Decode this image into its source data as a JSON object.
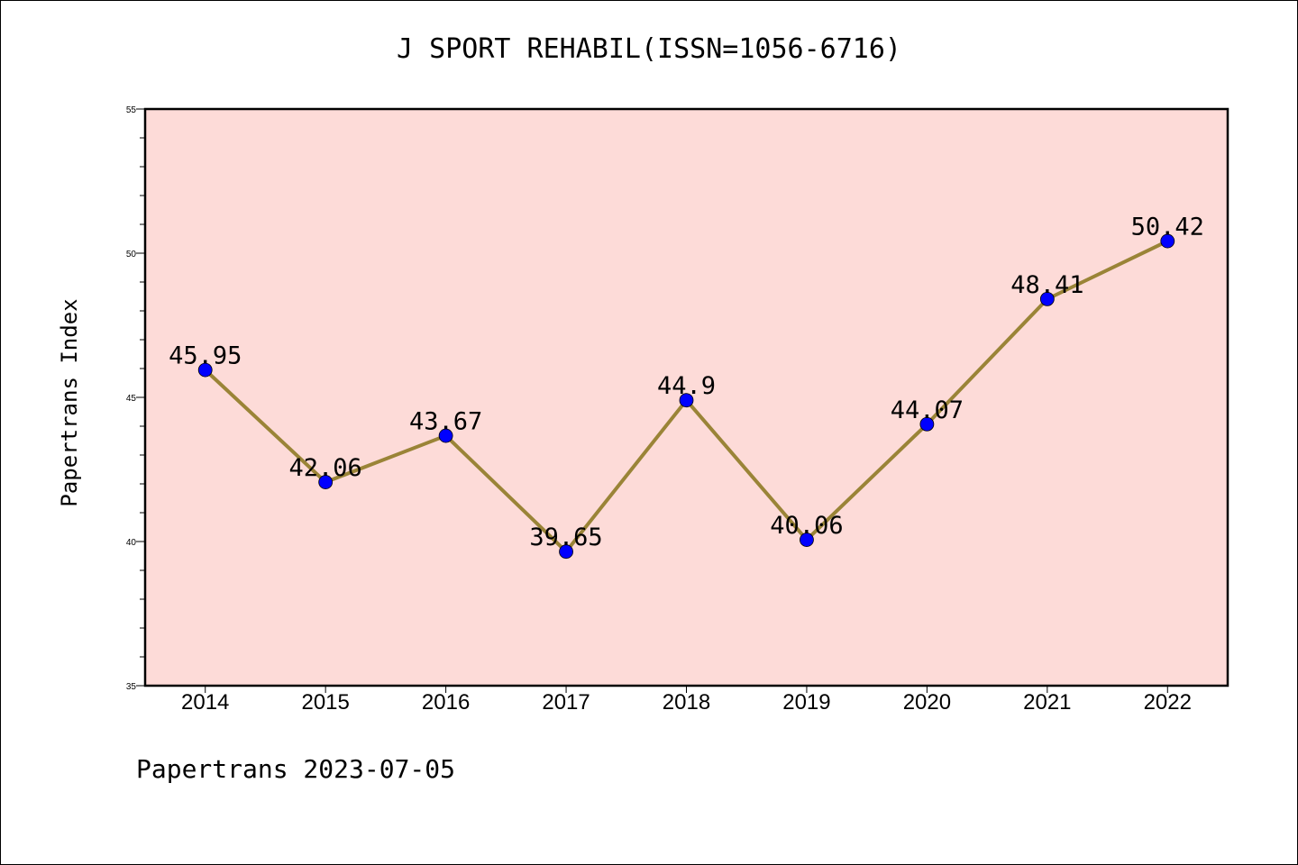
{
  "title": "J SPORT REHABIL(ISSN=1056-6716)",
  "ylabel": "Papertrans Index",
  "footer": "Papertrans 2023-07-05",
  "chart_data": {
    "type": "line",
    "title": "J SPORT REHABIL(ISSN=1056-6716)",
    "xlabel": "",
    "ylabel": "Papertrans Index",
    "categories": [
      "2014",
      "2015",
      "2016",
      "2017",
      "2018",
      "2019",
      "2020",
      "2021",
      "2022"
    ],
    "values": [
      45.95,
      42.06,
      43.67,
      39.65,
      44.9,
      40.06,
      44.07,
      48.41,
      50.42
    ],
    "data_labels": [
      "45.95",
      "42.06",
      "43.67",
      "39.65",
      "44.9",
      "40.06",
      "44.07",
      "48.41",
      "50.42"
    ],
    "ylim": [
      35,
      55
    ],
    "yticks": [
      "35",
      "40",
      "45",
      "50",
      "55"
    ],
    "grid": false,
    "legend": "none",
    "colors": {
      "plot_background": "#fddbd8",
      "line": "#9a8437",
      "marker": "#0000ff"
    }
  }
}
